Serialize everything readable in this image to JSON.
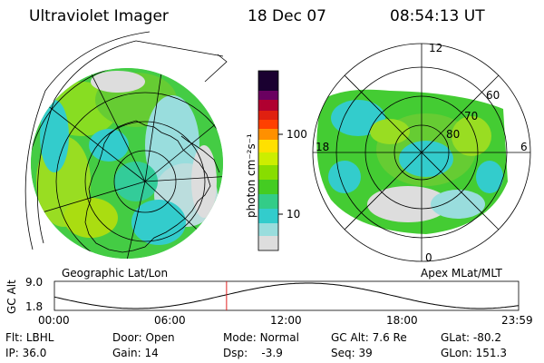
{
  "header": {
    "instrument": "Ultraviolet Imager",
    "date": "18 Dec 07",
    "time": "08:54:13 UT"
  },
  "colorbar": {
    "unit_label": "photon cm⁻²s⁻¹",
    "ticks": [
      "100",
      "10"
    ],
    "colors": [
      "#1a0020",
      "#3a0050",
      "#8a0040",
      "#c40030",
      "#ff3010",
      "#ff9000",
      "#ffe000",
      "#ccee00",
      "#88dd00",
      "#33cc33",
      "#33cccc",
      "#99dddd",
      "#dddddd"
    ]
  },
  "left_map": {
    "caption": "Geographic Lat/Lon"
  },
  "right_map": {
    "caption": "Apex MLat/MLT",
    "mlt_labels": {
      "top": "12",
      "bottom": "0",
      "left": "18",
      "right": "6"
    },
    "lat_labels": [
      "60",
      "70",
      "80"
    ]
  },
  "altitude_plot": {
    "ylabel": "GC Alt",
    "ymax": "9.0",
    "ymin": "1.8",
    "x_ticks": [
      "00:00",
      "06:00",
      "12:00",
      "18:00",
      "23:59"
    ],
    "current_time_hours": 8.9
  },
  "info": {
    "flt_label": "Flt:",
    "flt_value": "LBHL",
    "ip_label": "IP:",
    "ip_value": "36.0",
    "door_label": "Door:",
    "door_value": "Open",
    "gain_label": "Gain:",
    "gain_value": "14",
    "mode_label": "Mode:",
    "mode_value": "Normal",
    "dsp_label": "Dsp:",
    "dsp_value": "-3.9",
    "gcalt_label": "GC Alt:",
    "gcalt_value": "7.6 Re",
    "seq_label": "Seq:",
    "seq_value": "39",
    "glat_label": "GLat:",
    "glat_value": "-80.2",
    "glon_label": "GLon:",
    "glon_value": "151.3"
  }
}
